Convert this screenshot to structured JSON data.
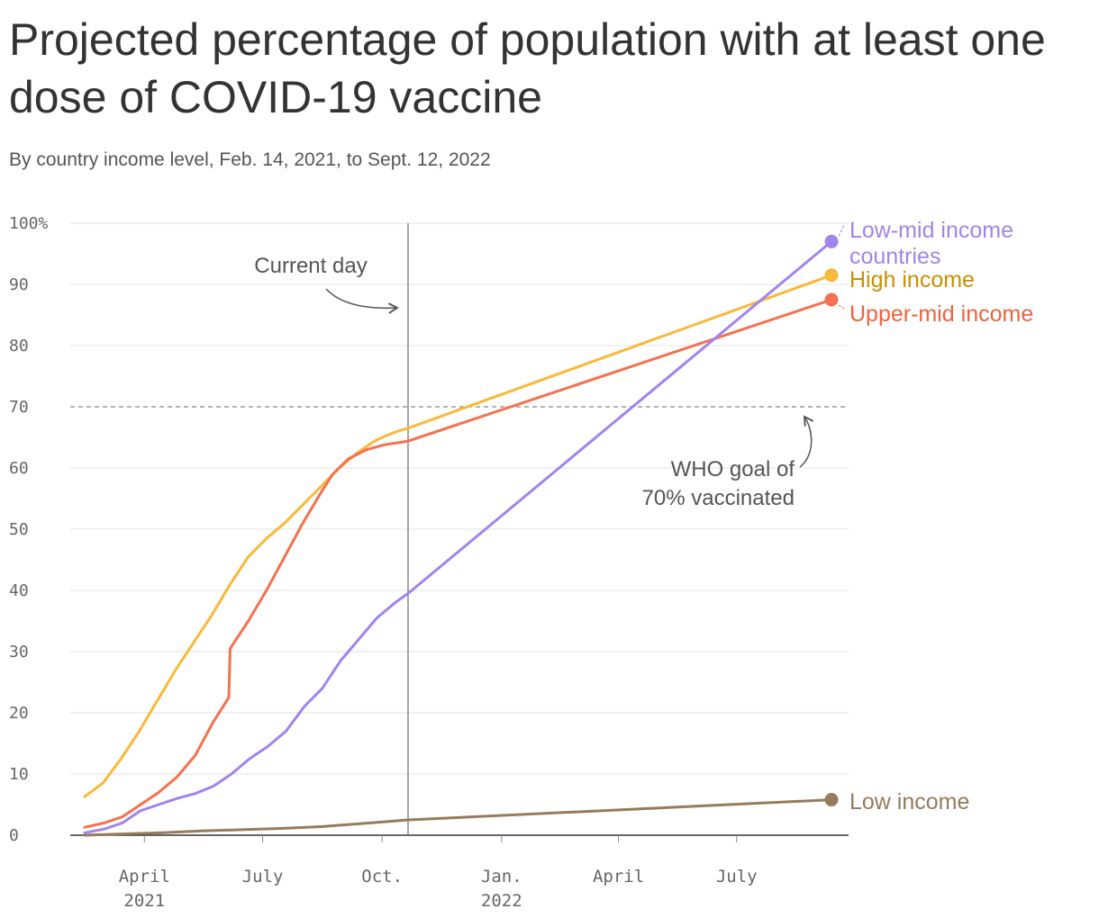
{
  "title": "Projected percentage of population with at least one dose of COVID-19 vaccine",
  "subtitle": "By country income level, Feb. 14, 2021, to Sept. 12, 2022",
  "chart_data": {
    "type": "line",
    "xlim": [
      "2021-02-14",
      "2022-09-12"
    ],
    "ylim": [
      0,
      100
    ],
    "y_ticks": [
      {
        "value": 0,
        "label": "0"
      },
      {
        "value": 10,
        "label": "10"
      },
      {
        "value": 20,
        "label": "20"
      },
      {
        "value": 30,
        "label": "30"
      },
      {
        "value": 40,
        "label": "40"
      },
      {
        "value": 50,
        "label": "50"
      },
      {
        "value": 60,
        "label": "60"
      },
      {
        "value": 70,
        "label": "70"
      },
      {
        "value": 80,
        "label": "80"
      },
      {
        "value": 90,
        "label": "90"
      },
      {
        "value": 100,
        "label": "100%"
      }
    ],
    "x_ticks": [
      {
        "date": "2021-04-01",
        "label": "April",
        "label2": "2021"
      },
      {
        "date": "2021-07-01",
        "label": "July",
        "label2": ""
      },
      {
        "date": "2021-10-01",
        "label": "Oct.",
        "label2": ""
      },
      {
        "date": "2022-01-01",
        "label": "Jan.",
        "label2": "2022"
      },
      {
        "date": "2022-04-01",
        "label": "April",
        "label2": ""
      },
      {
        "date": "2022-07-01",
        "label": "July",
        "label2": ""
      }
    ],
    "grid": true,
    "reference_line": {
      "value": 70,
      "style": "dashed"
    },
    "current_day": {
      "date": "2021-10-21",
      "label": "Current day"
    },
    "goal_annotation": {
      "line1": "WHO goal of",
      "line2": "70% vaccinated"
    },
    "series": [
      {
        "name": "High income",
        "label_lines": [
          "High income"
        ],
        "color": "#f9b93a",
        "label_color": "#c99000",
        "points": [
          [
            "2021-02-14",
            6.3
          ],
          [
            "2021-02-28",
            8.5
          ],
          [
            "2021-03-14",
            12.5
          ],
          [
            "2021-03-28",
            17
          ],
          [
            "2021-04-11",
            22
          ],
          [
            "2021-04-25",
            27
          ],
          [
            "2021-05-09",
            31.5
          ],
          [
            "2021-05-23",
            36
          ],
          [
            "2021-06-06",
            41
          ],
          [
            "2021-06-20",
            45.5
          ],
          [
            "2021-07-04",
            48.5
          ],
          [
            "2021-07-18",
            51
          ],
          [
            "2021-08-01",
            54
          ],
          [
            "2021-08-15",
            57
          ],
          [
            "2021-08-29",
            60
          ],
          [
            "2021-09-12",
            62.5
          ],
          [
            "2021-09-26",
            64.5
          ],
          [
            "2021-10-10",
            65.8
          ],
          [
            "2021-10-21",
            66.5
          ],
          [
            "2022-09-12",
            91.5
          ]
        ]
      },
      {
        "name": "Upper-mid income",
        "label_lines": [
          "Upper-mid income"
        ],
        "color": "#f5714f",
        "label_color": "#f0623e",
        "points": [
          [
            "2021-02-14",
            1.3
          ],
          [
            "2021-03-01",
            2
          ],
          [
            "2021-03-15",
            3
          ],
          [
            "2021-03-29",
            5
          ],
          [
            "2021-04-12",
            7
          ],
          [
            "2021-04-26",
            9.5
          ],
          [
            "2021-05-10",
            13
          ],
          [
            "2021-05-24",
            18.5
          ],
          [
            "2021-06-05",
            22.5
          ],
          [
            "2021-06-06",
            30.5
          ],
          [
            "2021-06-20",
            35
          ],
          [
            "2021-07-04",
            40
          ],
          [
            "2021-07-18",
            45.5
          ],
          [
            "2021-08-01",
            51
          ],
          [
            "2021-08-15",
            56
          ],
          [
            "2021-08-24",
            59
          ],
          [
            "2021-09-05",
            61.5
          ],
          [
            "2021-09-19",
            63
          ],
          [
            "2021-10-03",
            63.8
          ],
          [
            "2021-10-21",
            64.4
          ],
          [
            "2022-09-12",
            87.5
          ]
        ]
      },
      {
        "name": "Low-mid income countries",
        "label_lines": [
          "Low-mid income",
          "countries"
        ],
        "color": "#a184ec",
        "label_color": "#a184ec",
        "points": [
          [
            "2021-02-14",
            0.4
          ],
          [
            "2021-03-01",
            1
          ],
          [
            "2021-03-15",
            2
          ],
          [
            "2021-03-29",
            4
          ],
          [
            "2021-04-12",
            5
          ],
          [
            "2021-04-26",
            6
          ],
          [
            "2021-05-10",
            6.8
          ],
          [
            "2021-05-24",
            8
          ],
          [
            "2021-06-07",
            10
          ],
          [
            "2021-06-21",
            12.5
          ],
          [
            "2021-07-05",
            14.5
          ],
          [
            "2021-07-19",
            17
          ],
          [
            "2021-08-02",
            21
          ],
          [
            "2021-08-16",
            24
          ],
          [
            "2021-08-30",
            28.5
          ],
          [
            "2021-09-13",
            32
          ],
          [
            "2021-09-27",
            35.5
          ],
          [
            "2021-10-11",
            38
          ],
          [
            "2021-10-21",
            39.5
          ],
          [
            "2022-09-12",
            97
          ]
        ]
      },
      {
        "name": "Low income",
        "label_lines": [
          "Low income"
        ],
        "color": "#967b5c",
        "label_color": "#967b5c",
        "points": [
          [
            "2021-02-14",
            0
          ],
          [
            "2021-03-15",
            0.2
          ],
          [
            "2021-04-15",
            0.4
          ],
          [
            "2021-05-15",
            0.7
          ],
          [
            "2021-06-15",
            0.9
          ],
          [
            "2021-07-15",
            1.1
          ],
          [
            "2021-08-15",
            1.4
          ],
          [
            "2021-09-15",
            1.9
          ],
          [
            "2021-10-21",
            2.5
          ],
          [
            "2022-09-12",
            5.8
          ]
        ]
      }
    ]
  }
}
